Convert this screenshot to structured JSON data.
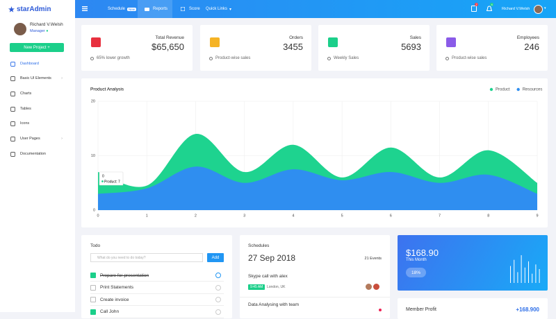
{
  "sidebar": {
    "logo": "starAdmin",
    "user": {
      "name": "Richard V.Welsh",
      "role": "Manager"
    },
    "button": "New Project +",
    "nav": [
      "Dashboard",
      "Basic UI Elements",
      "Charts",
      "Tables",
      "Icons",
      "User Pages",
      "Documentation"
    ]
  },
  "header": {
    "nav": [
      {
        "label": "Schedule",
        "badge": "New"
      },
      {
        "label": "Reports"
      },
      {
        "label": "Score"
      },
      {
        "label": "Quick Links"
      }
    ],
    "notification_badges": [
      "7",
      "4"
    ],
    "user": "Richard V.Welsh"
  },
  "stats": [
    {
      "title": "Total Revenue",
      "value": "$65,650",
      "note": "65% lower growth"
    },
    {
      "title": "Orders",
      "value": "3455",
      "note": "Product-wise sales"
    },
    {
      "title": "Sales",
      "value": "5693",
      "note": "Weekly Sales"
    },
    {
      "title": "Employees",
      "value": "246",
      "note": "Product-wise sales"
    }
  ],
  "chart_data": {
    "type": "area",
    "title": "Product Analysis",
    "x": [
      0,
      1,
      2,
      3,
      4,
      5,
      6,
      7,
      8,
      9
    ],
    "xlim": [
      0,
      9
    ],
    "xticks": [
      0,
      1,
      2,
      3,
      4,
      5,
      6,
      7,
      8,
      9
    ],
    "ylim": [
      0,
      20
    ],
    "yticks": [
      0,
      10,
      20
    ],
    "grid": true,
    "legend": "top-right",
    "series": [
      {
        "name": "Product",
        "color": "#1ed38f",
        "values": [
          7,
          4.5,
          14,
          7,
          12,
          6,
          11.5,
          6,
          11,
          5
        ]
      },
      {
        "name": "Resources",
        "color": "#2f8ef0",
        "values": [
          3,
          4,
          8,
          5,
          7.5,
          5.5,
          7,
          5,
          6.5,
          3
        ]
      }
    ],
    "tooltip": {
      "title": "0",
      "text": "Product: 7"
    }
  },
  "todo": {
    "title": "Todo",
    "placeholder": "What do you need to do today?",
    "button": "Add",
    "items": [
      {
        "text": "Prepare for presentation",
        "done": true
      },
      {
        "text": "Print Statements",
        "done": false
      },
      {
        "text": "Create invoice",
        "done": false
      },
      {
        "text": "Call John",
        "done": true
      }
    ]
  },
  "schedules": {
    "title": "Schedules",
    "date": "27 Sep 2018",
    "count": "21 Events",
    "events": [
      {
        "title": "Skype call with alex",
        "time": "9:45 AM",
        "location": "London, UK"
      },
      {
        "title": "Data Analysing with team"
      }
    ]
  },
  "profit_card": {
    "amount": "$168.90",
    "period": "This Month",
    "change": "18%",
    "sparkline": [
      22,
      30,
      14,
      36,
      20,
      28,
      12,
      24,
      18
    ]
  },
  "member_profit": {
    "title": "Member Profit",
    "value": "+168.900"
  }
}
